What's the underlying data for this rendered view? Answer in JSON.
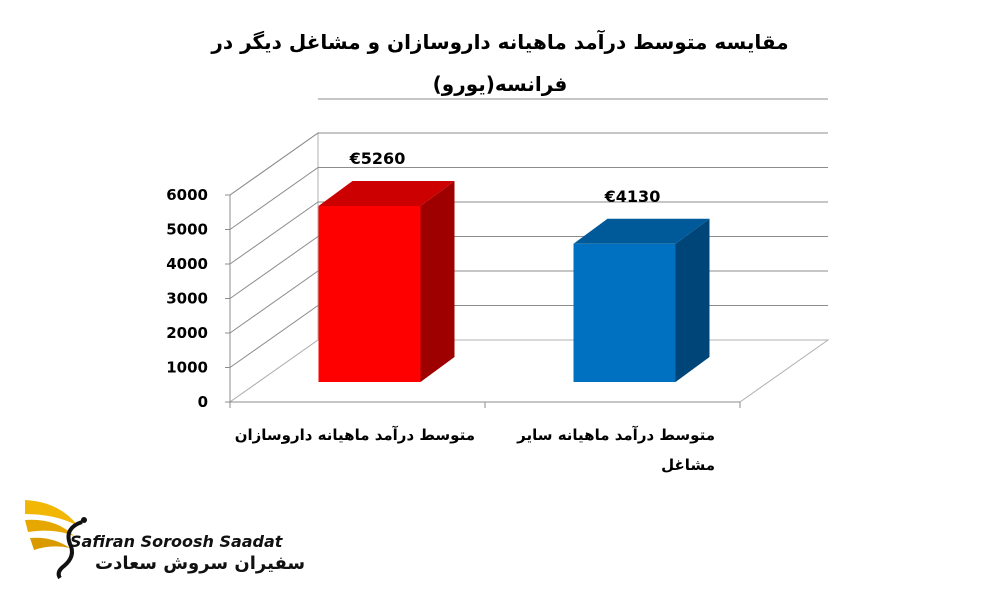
{
  "chart_data": {
    "type": "bar",
    "title_lines": [
      "مقایسه متوسط درآمد ماهیانه داروسازان و مشاغل دیگر در",
      "فرانسه(یورو)"
    ],
    "categories": [
      "متوسط درآمد ماهیانه داروسازان",
      "متوسط درآمد ماهیانه سایر مشاغل"
    ],
    "category_lines": [
      [
        "متوسط درآمد ماهیانه داروسازان"
      ],
      [
        "متوسط درآمد ماهیانه سایر",
        "مشاغل"
      ]
    ],
    "values": [
      5260,
      4130
    ],
    "value_labels": [
      "€5260",
      "€4130"
    ],
    "bar_colors": [
      "#ff0000",
      "#0070c0"
    ],
    "ylim": [
      0,
      6000
    ],
    "yticks": [
      "0",
      "1000",
      "2000",
      "3000",
      "4000",
      "5000",
      "6000"
    ],
    "grid": true,
    "legend": "none",
    "style": "3d-column"
  },
  "logo": {
    "name_en": "Safiran Soroosh Saadat",
    "name_fa": "سفیران سروش سعادت",
    "wing_color": "#f2b705"
  }
}
